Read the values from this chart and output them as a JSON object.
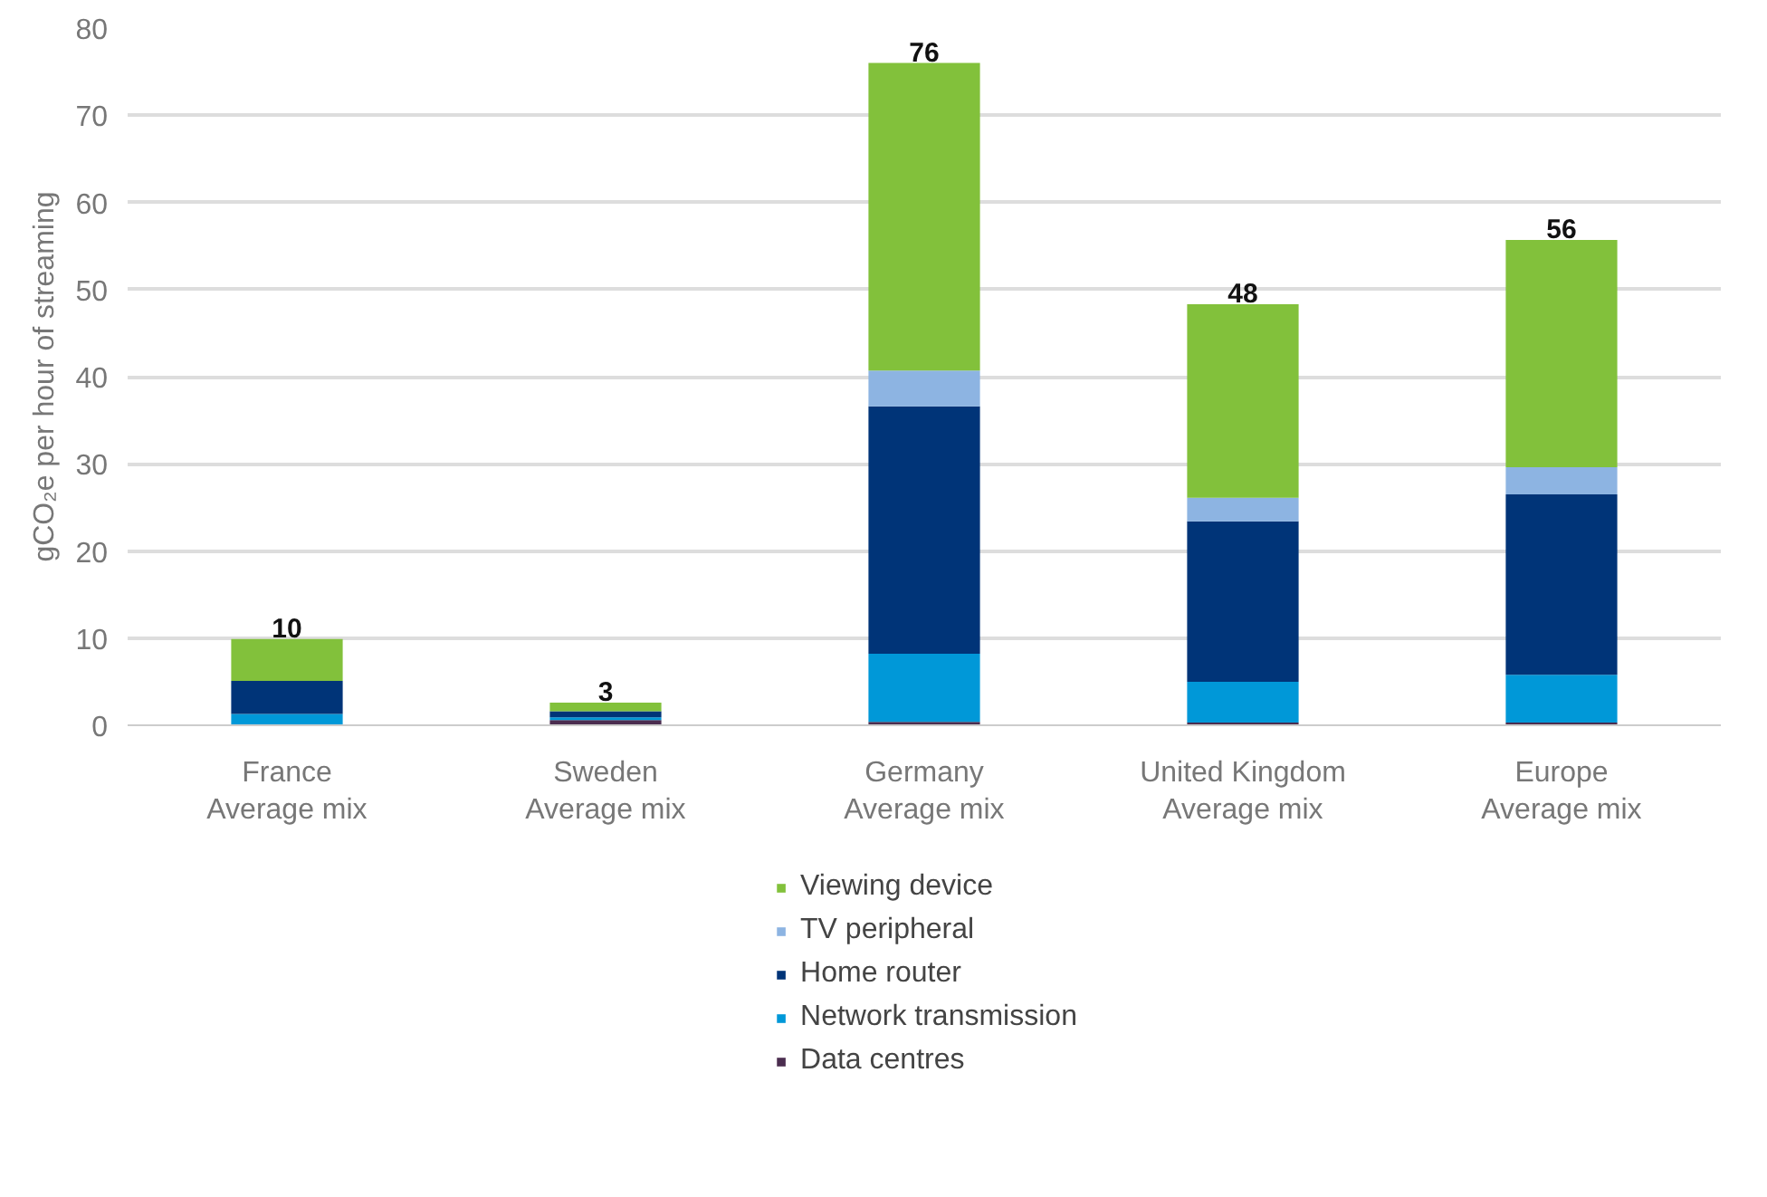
{
  "chart_data": {
    "type": "bar",
    "stacked": true,
    "ylabel": "gCO₂e per hour of streaming",
    "categories": [
      "France\nAverage mix",
      "Sweden\nAverage mix",
      "Germany\nAverage mix",
      "United Kingdom\nAverage mix",
      "Europe\nAverage mix"
    ],
    "series": [
      {
        "name": "Data centres",
        "color": "#4b2d4f",
        "values": [
          null,
          0.6,
          0.4,
          0.3,
          0.3
        ]
      },
      {
        "name": "Network transmission",
        "color": "#0098d8",
        "values": [
          1.3,
          0.3,
          7.8,
          4.7,
          5.5
        ]
      },
      {
        "name": "Home router",
        "color": "#003478",
        "values": [
          3.8,
          0.7,
          28.4,
          18.4,
          20.7
        ]
      },
      {
        "name": "TV peripheral",
        "color": "#8db4e2",
        "values": [
          0,
          0,
          4.1,
          2.7,
          3.1
        ]
      },
      {
        "name": "Viewing device",
        "color": "#82c13b",
        "values": [
          4.8,
          1.0,
          35.3,
          22.2,
          26.1
        ]
      }
    ],
    "totals": [
      "10",
      "3",
      "76",
      "48",
      "56"
    ],
    "ylim": [
      0,
      80
    ],
    "yticks": [
      0,
      10,
      20,
      30,
      40,
      50,
      60,
      70,
      80
    ],
    "grid": "y",
    "legend": "bottom"
  }
}
